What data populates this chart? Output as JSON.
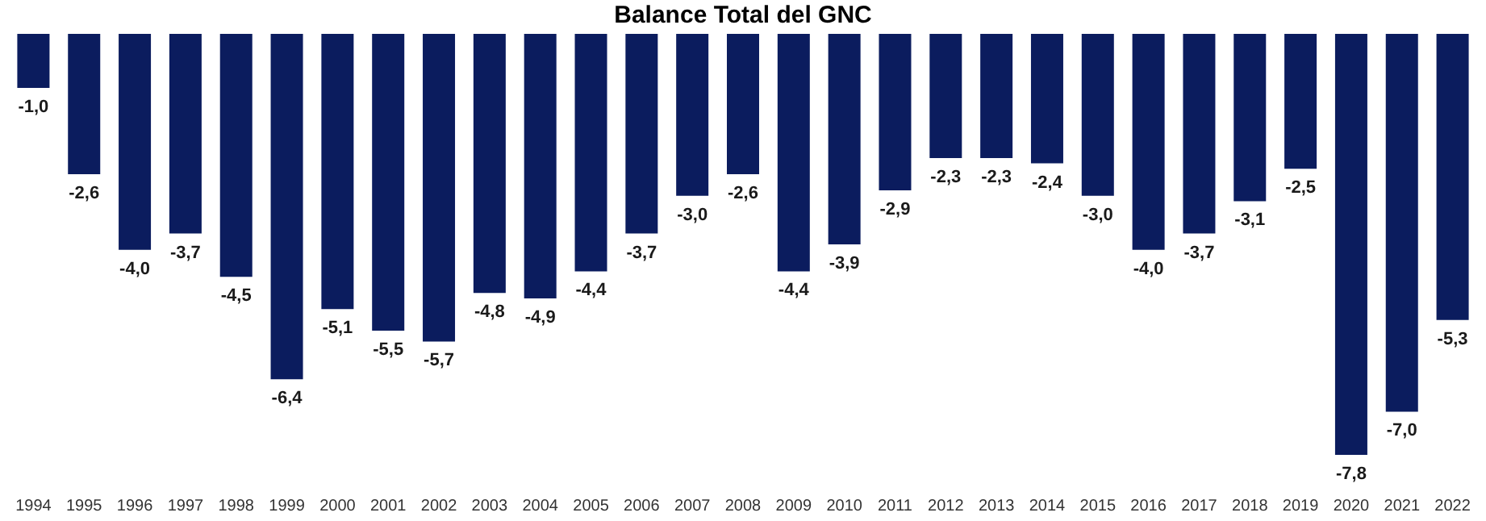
{
  "chart_data": {
    "type": "bar",
    "title": "Balance Total del GNC",
    "categories": [
      "1994",
      "1995",
      "1996",
      "1997",
      "1998",
      "1999",
      "2000",
      "2001",
      "2002",
      "2003",
      "2004",
      "2005",
      "2006",
      "2007",
      "2008",
      "2009",
      "2010",
      "2011",
      "2012",
      "2013",
      "2014",
      "2015",
      "2016",
      "2017",
      "2018",
      "2019",
      "2020",
      "2021",
      "2022"
    ],
    "values": [
      -1.0,
      -2.6,
      -4.0,
      -3.7,
      -4.5,
      -6.4,
      -5.1,
      -5.5,
      -5.7,
      -4.8,
      -4.9,
      -4.4,
      -3.7,
      -3.0,
      -2.6,
      -4.4,
      -3.9,
      -2.9,
      -2.3,
      -2.3,
      -2.4,
      -3.0,
      -4.0,
      -3.7,
      -3.1,
      -2.5,
      -7.8,
      -7.0,
      -5.3
    ],
    "value_labels": [
      "-1,0",
      "-2,6",
      "-4,0",
      "-3,7",
      "-4,5",
      "-6,4",
      "-5,1",
      "-5,5",
      "-5,7",
      "-4,8",
      "-4,9",
      "-4,4",
      "-3,7",
      "-3,0",
      "-2,6",
      "-4,4",
      "-3,9",
      "-2,9",
      "-2,3",
      "-2,3",
      "-2,4",
      "-3,0",
      "-4,0",
      "-3,7",
      "-3,1",
      "-2,5",
      "-7,8",
      "-7,0",
      "-5,3"
    ],
    "color": "#0b1c5e",
    "grid": false,
    "tick_labels": "x"
  }
}
